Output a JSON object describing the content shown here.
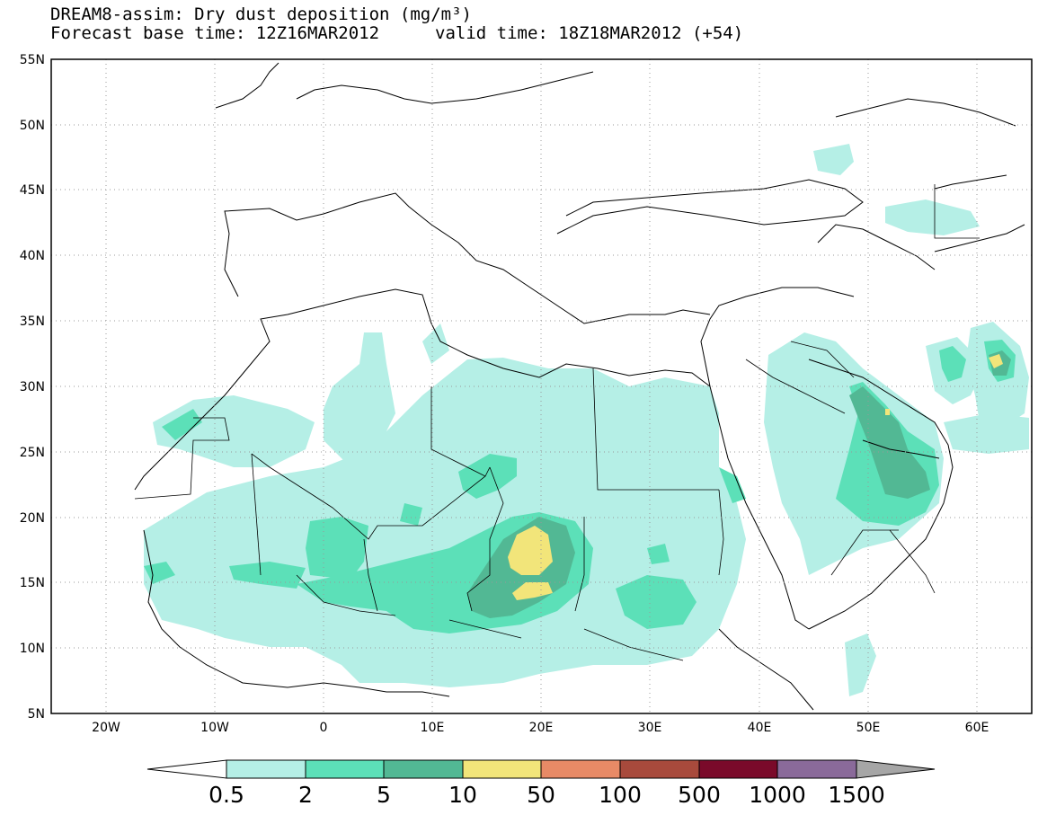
{
  "header": {
    "title": "DREAM8-assim: Dry dust deposition (mg/m³)",
    "base_time": "Forecast base time: 12Z16MAR2012",
    "valid_time": "valid time: 18Z18MAR2012 (+54)"
  },
  "map": {
    "lon_range": [
      -25,
      65
    ],
    "lat_range": [
      5,
      55
    ],
    "lat_ticks": [
      "55N",
      "50N",
      "45N",
      "40N",
      "35N",
      "30N",
      "25N",
      "20N",
      "15N",
      "10N",
      "5N"
    ],
    "lon_ticks": [
      "20W",
      "10W",
      "0",
      "10E",
      "20E",
      "30E",
      "40E",
      "50E",
      "60E"
    ],
    "grid": "dotted"
  },
  "legend": {
    "labels": [
      "0.5",
      "2",
      "5",
      "10",
      "50",
      "100",
      "500",
      "1000",
      "1500"
    ],
    "colors": [
      "#b5efe6",
      "#5ce0b8",
      "#52b894",
      "#f2e57a",
      "#e88a66",
      "#a84a3c",
      "#7a0a2a",
      "#8a6a9a",
      "#a6a6a6"
    ],
    "under_color": "#ffffff",
    "over_color": "#a6a6a6"
  }
}
